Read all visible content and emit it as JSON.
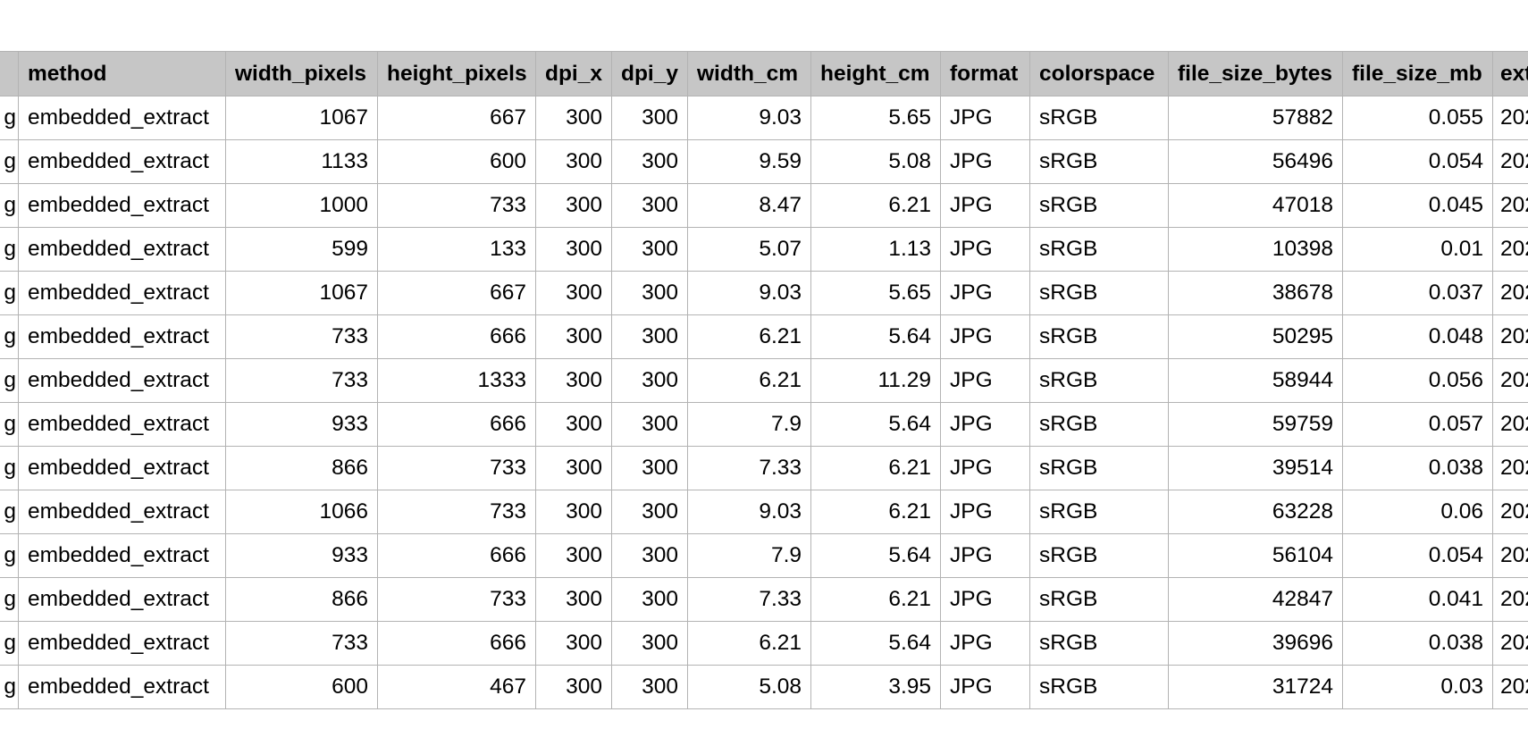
{
  "sheet": {
    "columns": [
      "",
      "method",
      "width_pixels",
      "height_pixels",
      "dpi_x",
      "dpi_y",
      "width_cm",
      "height_cm",
      "format",
      "colorspace",
      "file_size_bytes",
      "file_size_mb",
      "ext"
    ],
    "rows": [
      [
        "g",
        "embedded_extract",
        "1067",
        "667",
        "300",
        "300",
        "9.03",
        "5.65",
        "JPG",
        "sRGB",
        "57882",
        "0.055",
        "202"
      ],
      [
        "g",
        "embedded_extract",
        "1133",
        "600",
        "300",
        "300",
        "9.59",
        "5.08",
        "JPG",
        "sRGB",
        "56496",
        "0.054",
        "202"
      ],
      [
        "g",
        "embedded_extract",
        "1000",
        "733",
        "300",
        "300",
        "8.47",
        "6.21",
        "JPG",
        "sRGB",
        "47018",
        "0.045",
        "202"
      ],
      [
        "g",
        "embedded_extract",
        "599",
        "133",
        "300",
        "300",
        "5.07",
        "1.13",
        "JPG",
        "sRGB",
        "10398",
        "0.01",
        "202"
      ],
      [
        "g",
        "embedded_extract",
        "1067",
        "667",
        "300",
        "300",
        "9.03",
        "5.65",
        "JPG",
        "sRGB",
        "38678",
        "0.037",
        "202"
      ],
      [
        "g",
        "embedded_extract",
        "733",
        "666",
        "300",
        "300",
        "6.21",
        "5.64",
        "JPG",
        "sRGB",
        "50295",
        "0.048",
        "202"
      ],
      [
        "g",
        "embedded_extract",
        "733",
        "1333",
        "300",
        "300",
        "6.21",
        "11.29",
        "JPG",
        "sRGB",
        "58944",
        "0.056",
        "202"
      ],
      [
        "g",
        "embedded_extract",
        "933",
        "666",
        "300",
        "300",
        "7.9",
        "5.64",
        "JPG",
        "sRGB",
        "59759",
        "0.057",
        "202"
      ],
      [
        "g",
        "embedded_extract",
        "866",
        "733",
        "300",
        "300",
        "7.33",
        "6.21",
        "JPG",
        "sRGB",
        "39514",
        "0.038",
        "202"
      ],
      [
        "g",
        "embedded_extract",
        "1066",
        "733",
        "300",
        "300",
        "9.03",
        "6.21",
        "JPG",
        "sRGB",
        "63228",
        "0.06",
        "202"
      ],
      [
        "g",
        "embedded_extract",
        "933",
        "666",
        "300",
        "300",
        "7.9",
        "5.64",
        "JPG",
        "sRGB",
        "56104",
        "0.054",
        "202"
      ],
      [
        "g",
        "embedded_extract",
        "866",
        "733",
        "300",
        "300",
        "7.33",
        "6.21",
        "JPG",
        "sRGB",
        "42847",
        "0.041",
        "202"
      ],
      [
        "g",
        "embedded_extract",
        "733",
        "666",
        "300",
        "300",
        "6.21",
        "5.64",
        "JPG",
        "sRGB",
        "39696",
        "0.038",
        "202"
      ],
      [
        "g",
        "embedded_extract",
        "600",
        "467",
        "300",
        "300",
        "5.08",
        "3.95",
        "JPG",
        "sRGB",
        "31724",
        "0.03",
        "202"
      ]
    ]
  },
  "colors": {
    "header_bg": "#c6c6c6",
    "grid_line": "#b3b3b3",
    "background": "#ffffff"
  }
}
